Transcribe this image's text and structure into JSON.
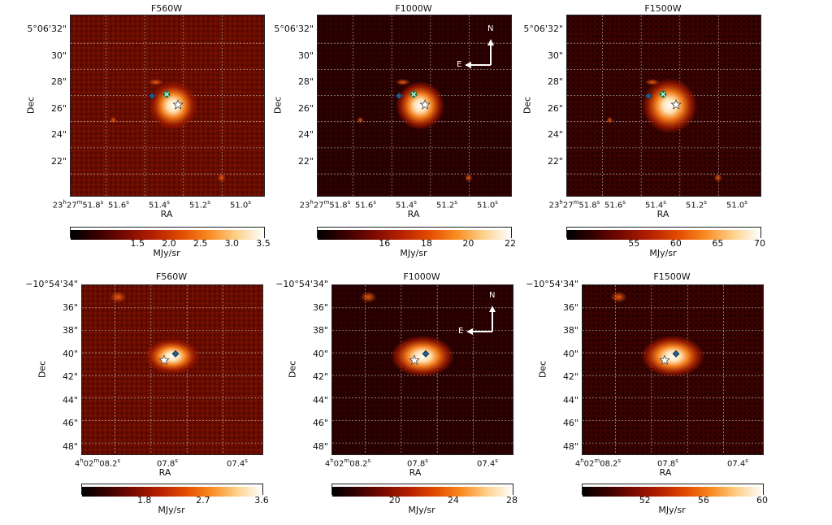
{
  "rows": [
    {
      "id": "top",
      "dec_ticks": [
        "5°06'32\"",
        "30\"",
        "28\"",
        "26\"",
        "24\"",
        "22\""
      ],
      "ra_ticks": [
        "23h27m51.8s",
        "51.6s",
        "51.4s",
        "51.2s",
        "51.0s"
      ],
      "ra_first_parts": {
        "h": "23",
        "m": "27",
        "s": "51.8"
      },
      "panels": [
        {
          "filter": "F560W",
          "cbar_ticks": [
            "1.5",
            "2.0",
            "2.5",
            "3.0",
            "3.5"
          ],
          "cbar_label": "MJy/sr",
          "compass": false
        },
        {
          "filter": "F1000W",
          "cbar_ticks": [
            "16",
            "18",
            "20",
            "22"
          ],
          "cbar_label": "MJy/sr",
          "compass": true
        },
        {
          "filter": "F1500W",
          "cbar_ticks": [
            "55",
            "60",
            "65",
            "70"
          ],
          "cbar_label": "MJy/sr",
          "compass": false
        }
      ]
    },
    {
      "id": "bottom",
      "dec_ticks": [
        "−10°54'34\"",
        "36\"",
        "38\"",
        "40\"",
        "42\"",
        "44\"",
        "46\"",
        "48\""
      ],
      "ra_ticks": [
        "4h02m08.2s",
        "07.8s",
        "07.4s"
      ],
      "panels": [
        {
          "filter": "F560W",
          "cbar_ticks": [
            "1.8",
            "2.7",
            "3.6"
          ],
          "cbar_label": "MJy/sr",
          "compass": false
        },
        {
          "filter": "F1000W",
          "cbar_ticks": [
            "20",
            "24",
            "28"
          ],
          "cbar_label": "MJy/sr",
          "compass": true
        },
        {
          "filter": "F1500W",
          "cbar_ticks": [
            "52",
            "56",
            "60"
          ],
          "cbar_label": "MJy/sr",
          "compass": false
        }
      ]
    }
  ],
  "axis": {
    "xlabel": "RA",
    "ylabel": "Dec"
  },
  "compass": {
    "north": "N",
    "east": "E"
  },
  "colors": {
    "colormap": [
      "#000000",
      "#3a0000",
      "#7a0a00",
      "#b52000",
      "#e24a00",
      "#f98a20",
      "#fdd08a",
      "#ffffff"
    ],
    "diamond": "#1f5d8a",
    "cross": "#1e6b3a"
  }
}
